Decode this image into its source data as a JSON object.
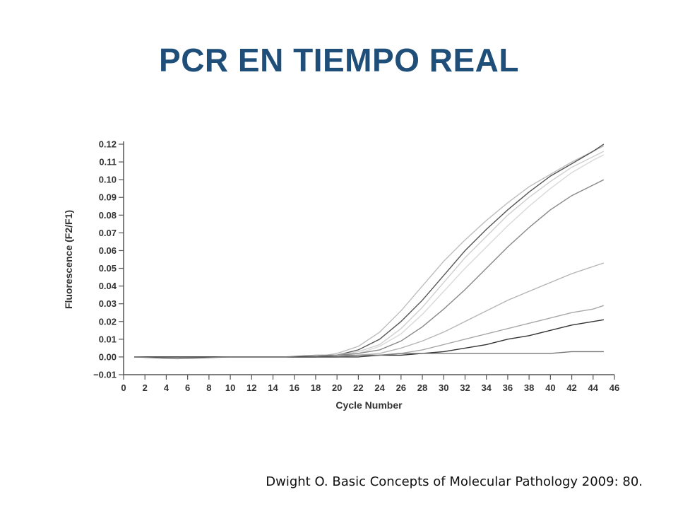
{
  "slide": {
    "title": "PCR EN TIEMPO REAL",
    "citation": "Dwight O. Basic Concepts of Molecular Pathology 2009: 80."
  },
  "chart_data": {
    "type": "line",
    "title": "",
    "xlabel": "Cycle Number",
    "ylabel": "Fluorescence (F2/F1)",
    "xlim": [
      0,
      46
    ],
    "ylim": [
      -0.01,
      0.12
    ],
    "xticks": [
      0,
      2,
      4,
      6,
      8,
      10,
      12,
      14,
      16,
      18,
      20,
      22,
      24,
      26,
      28,
      30,
      32,
      34,
      36,
      38,
      40,
      42,
      44,
      46
    ],
    "yticks": [
      -0.01,
      0.0,
      0.01,
      0.02,
      0.03,
      0.04,
      0.05,
      0.06,
      0.07,
      0.08,
      0.09,
      0.1,
      0.11,
      0.12
    ],
    "ytick_labels": [
      "−0.01",
      "0.00",
      "0.01",
      "0.02",
      "0.03",
      "0.04",
      "0.05",
      "0.06",
      "0.07",
      "0.08",
      "0.09",
      "0.10",
      "0.11",
      "0.12"
    ],
    "grid": false,
    "legend": "none",
    "x": [
      1,
      5,
      10,
      15,
      18,
      20,
      22,
      24,
      26,
      28,
      30,
      32,
      34,
      36,
      38,
      40,
      42,
      44,
      45
    ],
    "series": [
      {
        "color": "#bdbdbd",
        "values": [
          0.0,
          0.0,
          0.0,
          0.0,
          0.0,
          0.002,
          0.006,
          0.014,
          0.026,
          0.04,
          0.054,
          0.066,
          0.077,
          0.087,
          0.096,
          0.103,
          0.11,
          0.116,
          0.119
        ]
      },
      {
        "color": "#555555",
        "values": [
          0.0,
          0.0,
          0.0,
          0.0,
          0.0,
          0.001,
          0.004,
          0.01,
          0.02,
          0.032,
          0.046,
          0.06,
          0.072,
          0.083,
          0.093,
          0.102,
          0.109,
          0.116,
          0.12
        ]
      },
      {
        "color": "#cfcfcf",
        "values": [
          0.0,
          0.0,
          0.0,
          0.0,
          0.0,
          0.001,
          0.003,
          0.007,
          0.016,
          0.028,
          0.042,
          0.056,
          0.068,
          0.08,
          0.09,
          0.099,
          0.107,
          0.113,
          0.116
        ]
      },
      {
        "color": "#d9d9d9",
        "values": [
          0.0,
          0.0,
          0.0,
          0.0,
          0.0,
          0.001,
          0.002,
          0.006,
          0.013,
          0.024,
          0.037,
          0.05,
          0.062,
          0.074,
          0.085,
          0.095,
          0.104,
          0.111,
          0.114
        ]
      },
      {
        "color": "#888888",
        "values": [
          0.0,
          0.0,
          0.0,
          0.0,
          0.0,
          0.001,
          0.002,
          0.004,
          0.009,
          0.017,
          0.027,
          0.038,
          0.05,
          0.062,
          0.073,
          0.083,
          0.091,
          0.097,
          0.1
        ]
      },
      {
        "color": "#b5b5b5",
        "values": [
          0.0,
          0.0,
          0.0,
          0.0,
          0.0,
          0.0,
          0.001,
          0.002,
          0.005,
          0.009,
          0.014,
          0.02,
          0.026,
          0.032,
          0.037,
          0.042,
          0.047,
          0.051,
          0.053
        ]
      },
      {
        "color": "#a8a8a8",
        "values": [
          0.0,
          0.0,
          0.0,
          0.0,
          0.0,
          0.0,
          0.001,
          0.001,
          0.002,
          0.004,
          0.007,
          0.01,
          0.013,
          0.016,
          0.019,
          0.022,
          0.025,
          0.027,
          0.029
        ]
      },
      {
        "color": "#333333",
        "values": [
          0.0,
          0.0,
          0.0,
          0.0,
          0.0,
          0.0,
          0.0,
          0.001,
          0.001,
          0.002,
          0.003,
          0.005,
          0.007,
          0.01,
          0.012,
          0.015,
          0.018,
          0.02,
          0.021
        ]
      },
      {
        "color": "#777777",
        "values": [
          0.0,
          -0.001,
          0.0,
          0.0,
          0.001,
          0.001,
          0.001,
          0.001,
          0.002,
          0.002,
          0.002,
          0.002,
          0.002,
          0.002,
          0.002,
          0.002,
          0.003,
          0.003,
          0.003
        ]
      }
    ]
  }
}
